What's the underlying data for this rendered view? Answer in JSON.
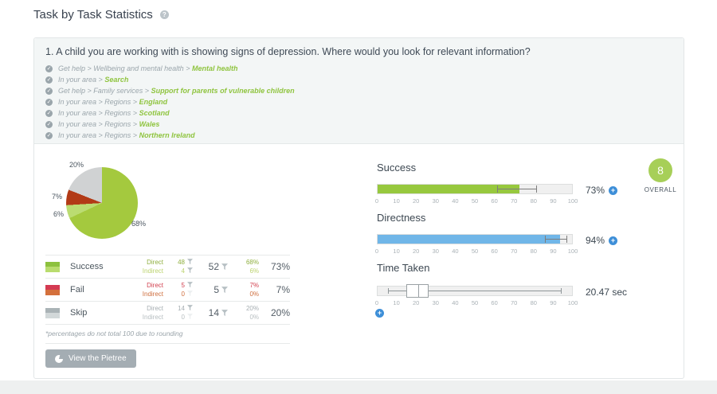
{
  "page": {
    "title": "Task by Task Statistics"
  },
  "task": {
    "question": "1. A child you are working with is showing signs of depression. Where would you look for relevant information?",
    "correct_paths": [
      {
        "prefix": "Get help > Wellbeing and mental health >",
        "destination": "Mental health"
      },
      {
        "prefix": "In your area >",
        "destination": "Search"
      },
      {
        "prefix": "Get help > Family services >",
        "destination": "Support for parents of vulnerable children"
      },
      {
        "prefix": "In your area > Regions >",
        "destination": "England"
      },
      {
        "prefix": "In your area > Regions >",
        "destination": "Scotland"
      },
      {
        "prefix": "In your area > Regions >",
        "destination": "Wales"
      },
      {
        "prefix": "In your area > Regions >",
        "destination": "Northern Ireland"
      }
    ]
  },
  "chart_data": {
    "type": "pie",
    "title": "Task result breakdown",
    "direction": "clockwise",
    "start_angle_deg": 0,
    "slices": [
      {
        "name": "Success direct",
        "value": 68,
        "label": "68%",
        "color": "#a4c93e"
      },
      {
        "name": "Success indirect",
        "value": 6,
        "label": "6%",
        "color": "#bbdc72"
      },
      {
        "name": "Fail",
        "value": 7,
        "label": "7%",
        "color": "#b23a16"
      },
      {
        "name": "Skip",
        "value": 20,
        "label": "20%",
        "color": "#d0d2d3"
      }
    ]
  },
  "results_table": {
    "rows": [
      {
        "label": "Success",
        "direct_label": "Direct",
        "indirect_label": "Indirect",
        "direct_count": "48",
        "indirect_count": "4",
        "total_count": "52",
        "direct_pct": "68%",
        "indirect_pct": "6%",
        "total_pct": "73%",
        "swatch_top": "#8dc13e",
        "swatch_bottom": "#b9dc6e",
        "direct_color": "#8faf3e",
        "indirect_color": "#bcd36f"
      },
      {
        "label": "Fail",
        "direct_label": "Direct",
        "indirect_label": "Indirect",
        "direct_count": "5",
        "indirect_count": "0",
        "total_count": "5",
        "direct_pct": "7%",
        "indirect_pct": "0%",
        "total_pct": "7%",
        "swatch_top": "#d43a52",
        "swatch_bottom": "#d4703c",
        "direct_color": "#d2404f",
        "indirect_color": "#cf7040"
      },
      {
        "label": "Skip",
        "direct_label": "Direct",
        "indirect_label": "Indirect",
        "direct_count": "14",
        "indirect_count": "0",
        "total_count": "14",
        "direct_pct": "20%",
        "indirect_pct": "0%",
        "total_pct": "20%",
        "swatch_top": "#aab3b6",
        "swatch_bottom": "#d2d8d9",
        "direct_color": "#a6aeb2",
        "indirect_color": "#b7bec1"
      }
    ],
    "footnote": "*percentages do not total 100 due to rounding"
  },
  "metrics": [
    {
      "id": "success",
      "label": "Success",
      "value_label": "73%",
      "fill_percent": 73,
      "fill_color": "#97c83e",
      "whisker_low": 61.5,
      "whisker_high": 82
    },
    {
      "id": "directness",
      "label": "Directness",
      "value_label": "94%",
      "fill_percent": 94,
      "fill_color": "#70b6e8",
      "whisker_low": 86,
      "whisker_high": 97.5
    },
    {
      "id": "time_taken",
      "label": "Time Taken",
      "value_label": "20.47 sec",
      "whisker_low": 5.3,
      "whisker_high": 94.7,
      "box_low": 14.6,
      "box_high": 26.4,
      "median": 20.7
    }
  ],
  "axis_ticks": [
    "0",
    "10",
    "20",
    "30",
    "40",
    "50",
    "60",
    "70",
    "80",
    "90",
    "100"
  ],
  "overall": {
    "score": "8",
    "label": "OVERALL",
    "color": "#a7cf58"
  },
  "pietree_button": {
    "label": "View the Pietree"
  }
}
